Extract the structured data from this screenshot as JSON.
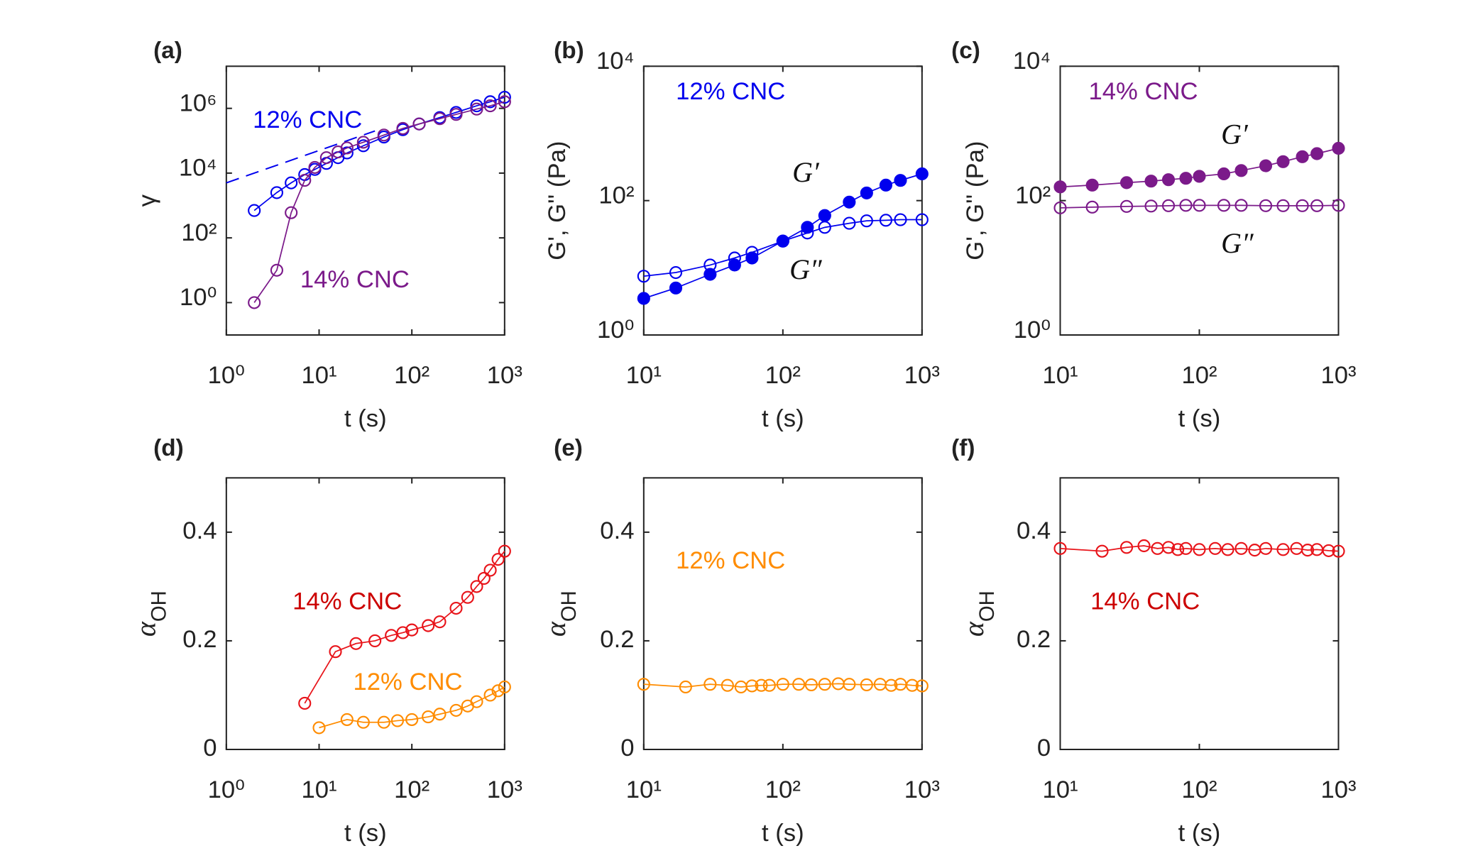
{
  "chart_data": [
    {
      "type": "line",
      "panel_label": "(a)",
      "xlabel": "t (s)",
      "ylabel": "γ",
      "xscale": "log",
      "yscale": "log",
      "xlim": [
        1,
        1000
      ],
      "xticks": [
        {
          "value": 1,
          "label": "10⁰"
        },
        {
          "value": 10,
          "label": "10¹"
        },
        {
          "value": 100,
          "label": "10²"
        },
        {
          "value": 1000,
          "label": "10³"
        }
      ],
      "ylim": [
        0.1,
        20000000
      ],
      "yticks": [
        {
          "value": 1,
          "label": "10⁰"
        },
        {
          "value": 100,
          "label": "10²"
        },
        {
          "value": 10000,
          "label": "10⁴"
        },
        {
          "value": 1000000,
          "label": "10⁶"
        }
      ],
      "series": [
        {
          "name": "12% CNC",
          "color": "#0000ee",
          "marker": "open",
          "x": [
            2,
            3.5,
            5,
            7,
            9,
            12,
            16,
            20,
            30,
            50,
            80,
            120,
            200,
            300,
            500,
            700,
            1000
          ],
          "values": [
            700,
            2500,
            5000,
            9000,
            13000,
            20000,
            30000,
            42000,
            70000,
            130000,
            220000,
            330000,
            520000,
            750000,
            1200000,
            1600000,
            2200000
          ]
        },
        {
          "color": "#0000ee",
          "marker": "none",
          "style": "dashed",
          "x": [
            1,
            40
          ],
          "values": [
            5000,
            200000
          ]
        },
        {
          "name": "14% CNC",
          "color": "#7b1a8a",
          "marker": "open",
          "x": [
            2,
            3.5,
            5,
            7,
            9,
            12,
            16,
            20,
            30,
            50,
            80,
            120,
            200,
            300,
            500,
            700,
            1000
          ],
          "values": [
            1,
            10,
            600,
            6000,
            15000,
            30000,
            45000,
            60000,
            90000,
            150000,
            240000,
            330000,
            480000,
            650000,
            950000,
            1200000,
            1600000
          ]
        }
      ],
      "annotations": []
    },
    {
      "type": "line",
      "panel_label": "(b)",
      "xlabel": "t (s)",
      "ylabel": "G', G'' (Pa)",
      "xscale": "log",
      "yscale": "log",
      "xlim": [
        10,
        1000
      ],
      "xticks": [
        {
          "value": 10,
          "label": "10¹"
        },
        {
          "value": 100,
          "label": "10²"
        },
        {
          "value": 1000,
          "label": "10³"
        }
      ],
      "ylim": [
        1,
        10000
      ],
      "yticks": [
        {
          "value": 1,
          "label": "10⁰"
        },
        {
          "value": 100,
          "label": "10²"
        },
        {
          "value": 10000,
          "label": "10⁴"
        }
      ],
      "series": [
        {
          "name": "G′",
          "color": "#0000ee",
          "marker": "filled",
          "x": [
            10,
            17,
            30,
            45,
            60,
            100,
            150,
            200,
            300,
            400,
            550,
            700,
            1000
          ],
          "values": [
            3.5,
            5,
            8,
            11,
            14,
            25,
            40,
            60,
            95,
            130,
            170,
            200,
            250
          ]
        },
        {
          "name": "G″",
          "color": "#0000ee",
          "marker": "open",
          "x": [
            10,
            17,
            30,
            45,
            60,
            100,
            150,
            200,
            300,
            400,
            550,
            700,
            1000
          ],
          "values": [
            7.5,
            8.5,
            11,
            14,
            17,
            25,
            33,
            40,
            46,
            50,
            51,
            52,
            52
          ]
        }
      ],
      "annotations": [
        "12% CNC"
      ]
    },
    {
      "type": "line",
      "panel_label": "(c)",
      "xlabel": "t (s)",
      "ylabel": "G', G'' (Pa)",
      "xscale": "log",
      "yscale": "log",
      "xlim": [
        10,
        1000
      ],
      "xticks": [
        {
          "value": 10,
          "label": "10¹"
        },
        {
          "value": 100,
          "label": "10²"
        },
        {
          "value": 1000,
          "label": "10³"
        }
      ],
      "ylim": [
        1,
        10000
      ],
      "yticks": [
        {
          "value": 1,
          "label": "10⁰"
        },
        {
          "value": 100,
          "label": "10²"
        },
        {
          "value": 10000,
          "label": "10⁴"
        }
      ],
      "series": [
        {
          "name": "G′",
          "color": "#7b1a8a",
          "marker": "filled",
          "x": [
            10,
            17,
            30,
            45,
            60,
            80,
            100,
            150,
            200,
            300,
            400,
            550,
            700,
            1000
          ],
          "values": [
            160,
            170,
            185,
            195,
            205,
            215,
            230,
            250,
            280,
            330,
            380,
            450,
            500,
            600
          ]
        },
        {
          "name": "G″",
          "color": "#7b1a8a",
          "marker": "open",
          "x": [
            10,
            17,
            30,
            45,
            60,
            80,
            100,
            150,
            200,
            300,
            400,
            550,
            700,
            1000
          ],
          "values": [
            78,
            80,
            82,
            83,
            84,
            85,
            85,
            85,
            85,
            84,
            84,
            84,
            84,
            85
          ]
        }
      ],
      "annotations": [
        "14% CNC"
      ]
    },
    {
      "type": "line",
      "panel_label": "(d)",
      "xlabel": "t (s)",
      "ylabel": "α",
      "ylabel_sub": "OH",
      "xscale": "log",
      "yscale": "linear",
      "xlim": [
        1,
        1000
      ],
      "xticks": [
        {
          "value": 1,
          "label": "10⁰"
        },
        {
          "value": 10,
          "label": "10¹"
        },
        {
          "value": 100,
          "label": "10²"
        },
        {
          "value": 1000,
          "label": "10³"
        }
      ],
      "ylim": [
        0,
        0.5
      ],
      "yticks": [
        0,
        0.2,
        0.4
      ],
      "series": [
        {
          "name": "14% CNC",
          "color": "#e8141a",
          "marker": "open",
          "x": [
            7,
            15,
            25,
            40,
            60,
            80,
            100,
            150,
            200,
            300,
            400,
            500,
            600,
            700,
            850,
            1000
          ],
          "values": [
            0.085,
            0.18,
            0.195,
            0.2,
            0.21,
            0.215,
            0.22,
            0.228,
            0.235,
            0.26,
            0.28,
            0.3,
            0.315,
            0.33,
            0.35,
            0.365
          ]
        },
        {
          "name": "12% CNC",
          "color": "#ff8c00",
          "marker": "open",
          "x": [
            10,
            20,
            30,
            50,
            70,
            100,
            150,
            200,
            300,
            400,
            500,
            700,
            850,
            1000
          ],
          "values": [
            0.04,
            0.055,
            0.05,
            0.05,
            0.053,
            0.055,
            0.06,
            0.065,
            0.072,
            0.08,
            0.088,
            0.1,
            0.108,
            0.115
          ]
        }
      ],
      "annotations": []
    },
    {
      "type": "line",
      "panel_label": "(e)",
      "xlabel": "t (s)",
      "ylabel": "α",
      "ylabel_sub": "OH",
      "xscale": "log",
      "yscale": "linear",
      "xlim": [
        10,
        1000
      ],
      "xticks": [
        {
          "value": 10,
          "label": "10¹"
        },
        {
          "value": 100,
          "label": "10²"
        },
        {
          "value": 1000,
          "label": "10³"
        }
      ],
      "ylim": [
        0,
        0.5
      ],
      "yticks": [
        0,
        0.2,
        0.4
      ],
      "series": [
        {
          "name": "12% CNC",
          "color": "#ff8c00",
          "marker": "open",
          "x": [
            10,
            20,
            30,
            40,
            50,
            60,
            70,
            80,
            100,
            130,
            160,
            200,
            250,
            300,
            400,
            500,
            600,
            700,
            850,
            1000
          ],
          "values": [
            0.12,
            0.115,
            0.12,
            0.118,
            0.115,
            0.117,
            0.118,
            0.118,
            0.12,
            0.12,
            0.119,
            0.12,
            0.121,
            0.12,
            0.119,
            0.12,
            0.118,
            0.12,
            0.118,
            0.117
          ]
        }
      ],
      "annotations": []
    },
    {
      "type": "line",
      "panel_label": "(f)",
      "xlabel": "t (s)",
      "ylabel": "α",
      "ylabel_sub": "OH",
      "xscale": "log",
      "yscale": "linear",
      "xlim": [
        10,
        1000
      ],
      "xticks": [
        {
          "value": 10,
          "label": "10¹"
        },
        {
          "value": 100,
          "label": "10²"
        },
        {
          "value": 1000,
          "label": "10³"
        }
      ],
      "ylim": [
        0,
        0.5
      ],
      "yticks": [
        0,
        0.2,
        0.4
      ],
      "series": [
        {
          "name": "14% CNC",
          "color": "#e8141a",
          "marker": "open",
          "x": [
            10,
            20,
            30,
            40,
            50,
            60,
            70,
            80,
            100,
            130,
            160,
            200,
            250,
            300,
            400,
            500,
            600,
            700,
            850,
            1000
          ],
          "values": [
            0.37,
            0.365,
            0.372,
            0.375,
            0.37,
            0.372,
            0.368,
            0.37,
            0.368,
            0.37,
            0.368,
            0.37,
            0.367,
            0.37,
            0.368,
            0.37,
            0.367,
            0.368,
            0.366,
            0.365
          ]
        }
      ],
      "annotations": []
    }
  ]
}
